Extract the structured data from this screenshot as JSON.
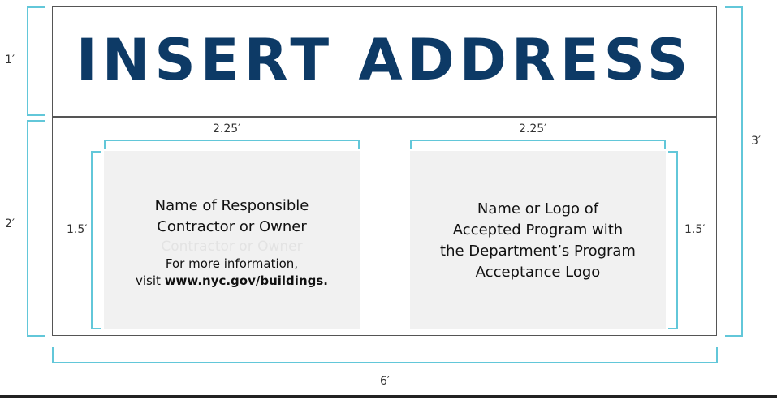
{
  "title": "INSERT ADDRESS",
  "dimensions": {
    "top_height": "1′",
    "bottom_height": "2′",
    "total_height": "3′",
    "total_width": "6′",
    "left_panel_width": "2.25′",
    "right_panel_width": "2.25′",
    "left_panel_height": "1.5′",
    "right_panel_height": "1.5′"
  },
  "left_panel": {
    "line1": "Name of Responsible",
    "line2": "Contractor or Owner",
    "ghost": "Contractor or Owner",
    "info_line1": "For more information,",
    "info_prefix": "visit ",
    "info_url": "www.nyc.gov/buildings."
  },
  "right_panel": {
    "line1": "Name or Logo of",
    "line2": "Accepted Program with",
    "line3": "the Department’s Program",
    "line4": "Acceptance Logo"
  },
  "colors": {
    "title": "#0d3a66",
    "dimension_bracket": "#62c7d9",
    "panel_fill": "#f1f1f1",
    "sign_border": "#555555"
  }
}
